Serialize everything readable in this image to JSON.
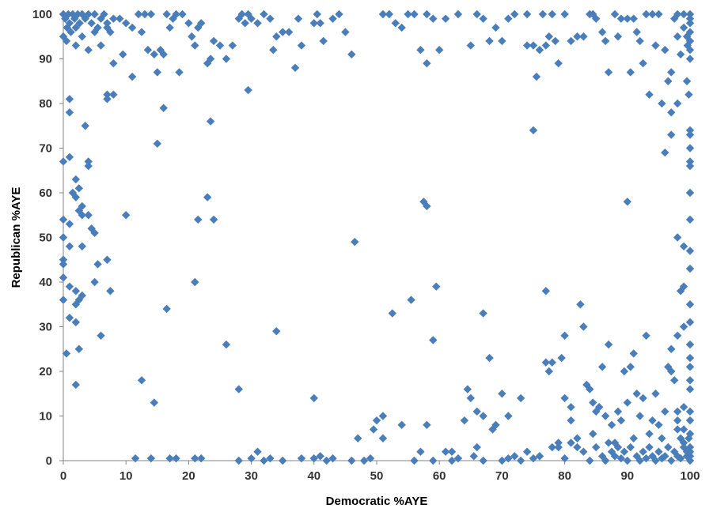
{
  "chart_data": {
    "type": "scatter",
    "title": "",
    "xlabel": "Democratic %AYE",
    "ylabel": "Republican %AYE",
    "xlim": [
      0,
      100
    ],
    "ylim": [
      0,
      100
    ],
    "x_ticks": [
      0,
      10,
      20,
      30,
      40,
      50,
      60,
      70,
      80,
      90,
      100
    ],
    "y_ticks": [
      0,
      10,
      20,
      30,
      40,
      50,
      60,
      70,
      80,
      90,
      100
    ],
    "grid": false,
    "legend": "none",
    "marker": "diamond",
    "marker_color": "#4a7ebb",
    "points": [
      [
        0,
        100
      ],
      [
        0.3,
        99
      ],
      [
        0.6,
        97
      ],
      [
        0.8,
        100
      ],
      [
        1,
        98
      ],
      [
        1.2,
        96
      ],
      [
        1.5,
        100
      ],
      [
        1.8,
        99
      ],
      [
        2,
        97
      ],
      [
        2.3,
        100
      ],
      [
        2.6,
        98
      ],
      [
        3,
        100
      ],
      [
        3.5,
        99
      ],
      [
        4,
        100
      ],
      [
        4.5,
        98
      ],
      [
        5,
        100
      ],
      [
        5.5,
        97
      ],
      [
        6,
        99
      ],
      [
        6.5,
        100
      ],
      [
        7,
        98
      ],
      [
        7.5,
        96
      ],
      [
        8,
        99
      ],
      [
        0,
        95
      ],
      [
        0.5,
        94
      ],
      [
        2,
        93
      ],
      [
        3,
        95
      ],
      [
        4,
        92
      ],
      [
        5,
        96
      ],
      [
        6,
        93
      ],
      [
        7,
        97
      ],
      [
        8,
        89
      ],
      [
        9,
        99
      ],
      [
        10,
        98
      ],
      [
        11,
        97
      ],
      [
        12,
        100
      ],
      [
        12.5,
        96
      ],
      [
        13,
        100
      ],
      [
        13.5,
        92
      ],
      [
        14,
        100
      ],
      [
        14.5,
        91
      ],
      [
        15,
        87
      ],
      [
        15.5,
        92
      ],
      [
        16,
        91
      ],
      [
        16.5,
        100
      ],
      [
        17,
        97
      ],
      [
        17.5,
        99
      ],
      [
        18,
        100
      ],
      [
        18.5,
        87
      ],
      [
        19,
        100
      ],
      [
        20,
        98
      ],
      [
        20.5,
        95
      ],
      [
        21,
        93
      ],
      [
        21.5,
        97
      ],
      [
        22,
        98
      ],
      [
        23,
        89
      ],
      [
        23.5,
        90
      ],
      [
        24,
        94
      ],
      [
        25,
        93
      ],
      [
        26,
        90
      ],
      [
        27,
        93
      ],
      [
        28,
        99
      ],
      [
        28.5,
        100
      ],
      [
        29,
        98
      ],
      [
        29.5,
        100
      ],
      [
        30,
        99
      ],
      [
        31,
        98
      ],
      [
        32,
        100
      ],
      [
        33,
        99
      ],
      [
        33.5,
        92
      ],
      [
        34,
        95
      ],
      [
        35,
        96
      ],
      [
        36,
        96
      ],
      [
        37,
        88
      ],
      [
        37.5,
        99
      ],
      [
        38,
        93
      ],
      [
        40,
        98
      ],
      [
        40.5,
        100
      ],
      [
        41,
        98
      ],
      [
        41.5,
        94
      ],
      [
        43,
        99
      ],
      [
        44,
        100
      ],
      [
        45,
        96
      ],
      [
        46,
        91
      ],
      [
        9.5,
        91
      ],
      [
        11,
        86
      ],
      [
        7,
        82
      ],
      [
        7,
        81
      ],
      [
        8,
        82
      ],
      [
        51,
        100
      ],
      [
        52,
        100
      ],
      [
        53,
        98
      ],
      [
        54,
        97
      ],
      [
        55,
        100
      ],
      [
        56,
        100
      ],
      [
        57,
        92
      ],
      [
        58,
        89
      ],
      [
        58,
        100
      ],
      [
        59,
        99
      ],
      [
        60,
        92
      ],
      [
        61,
        99
      ],
      [
        63,
        100
      ],
      [
        65,
        93
      ],
      [
        66,
        100
      ],
      [
        67,
        99
      ],
      [
        68,
        94
      ],
      [
        69,
        97
      ],
      [
        70,
        94
      ],
      [
        71,
        99
      ],
      [
        72,
        100
      ],
      [
        74,
        100
      ],
      [
        74,
        93
      ],
      [
        75,
        93
      ],
      [
        75.5,
        86
      ],
      [
        76,
        92
      ],
      [
        76.5,
        100
      ],
      [
        77,
        93
      ],
      [
        77.5,
        95
      ],
      [
        78,
        100
      ],
      [
        78.5,
        94
      ],
      [
        79,
        89
      ],
      [
        80,
        100
      ],
      [
        81,
        94
      ],
      [
        82,
        95
      ],
      [
        83,
        95
      ],
      [
        84,
        100
      ],
      [
        84.5,
        100
      ],
      [
        85,
        99
      ],
      [
        86,
        96
      ],
      [
        86.5,
        94
      ],
      [
        87,
        87
      ],
      [
        88,
        100
      ],
      [
        88.5,
        95
      ],
      [
        89,
        99
      ],
      [
        90,
        99
      ],
      [
        90.5,
        87
      ],
      [
        91,
        99
      ],
      [
        91.5,
        96
      ],
      [
        92,
        94
      ],
      [
        92.5,
        89
      ],
      [
        93,
        100
      ],
      [
        93.5,
        82
      ],
      [
        94,
        100
      ],
      [
        94.5,
        93
      ],
      [
        95,
        100
      ],
      [
        95.5,
        80
      ],
      [
        96,
        92
      ],
      [
        96.5,
        85
      ],
      [
        97,
        87
      ],
      [
        97.5,
        99
      ],
      [
        98,
        100
      ],
      [
        98.5,
        91
      ],
      [
        99,
        97
      ],
      [
        99.5,
        95
      ],
      [
        100,
        100
      ],
      [
        100,
        98
      ],
      [
        100,
        96
      ],
      [
        100,
        94
      ],
      [
        100,
        92
      ],
      [
        100,
        99
      ],
      [
        99,
        100
      ],
      [
        98,
        95
      ],
      [
        99.6,
        93
      ],
      [
        100,
        90
      ],
      [
        97,
        78
      ],
      [
        98,
        80
      ],
      [
        99.5,
        85
      ],
      [
        99.8,
        82
      ],
      [
        96,
        69
      ],
      [
        97,
        73
      ],
      [
        100,
        73
      ],
      [
        100,
        70
      ],
      [
        100,
        74
      ],
      [
        100,
        67
      ],
      [
        100,
        66
      ],
      [
        100,
        60
      ],
      [
        100,
        54
      ],
      [
        98,
        50
      ],
      [
        99,
        48
      ],
      [
        100,
        47
      ],
      [
        100,
        43
      ],
      [
        99,
        39
      ],
      [
        98.5,
        38
      ],
      [
        100,
        35
      ],
      [
        100,
        31
      ],
      [
        99,
        30
      ],
      [
        98,
        28
      ],
      [
        97,
        25
      ],
      [
        100,
        26
      ],
      [
        100,
        23
      ],
      [
        100,
        21
      ],
      [
        100,
        18
      ],
      [
        100,
        16
      ],
      [
        99,
        12
      ],
      [
        98,
        11
      ],
      [
        100,
        11
      ],
      [
        100,
        9
      ],
      [
        0,
        67
      ],
      [
        0,
        54
      ],
      [
        0,
        50
      ],
      [
        0,
        45
      ],
      [
        0,
        44
      ],
      [
        0,
        41
      ],
      [
        0,
        36
      ],
      [
        0.5,
        24
      ],
      [
        1,
        81
      ],
      [
        1,
        78
      ],
      [
        1,
        68
      ],
      [
        1,
        53
      ],
      [
        1,
        48
      ],
      [
        1,
        39
      ],
      [
        1,
        32
      ],
      [
        1.5,
        60
      ],
      [
        2,
        63
      ],
      [
        2,
        59
      ],
      [
        2,
        38
      ],
      [
        2,
        35
      ],
      [
        2,
        31
      ],
      [
        2,
        17
      ],
      [
        2.5,
        61
      ],
      [
        2.5,
        56
      ],
      [
        2.5,
        36
      ],
      [
        2.5,
        25
      ],
      [
        3,
        57
      ],
      [
        3,
        55
      ],
      [
        3,
        48
      ],
      [
        3,
        37
      ],
      [
        3.5,
        75
      ],
      [
        4,
        67
      ],
      [
        4,
        66
      ],
      [
        4,
        55
      ],
      [
        4.5,
        52
      ],
      [
        5,
        51
      ],
      [
        5,
        40
      ],
      [
        5.5,
        44
      ],
      [
        6,
        28
      ],
      [
        7,
        45
      ],
      [
        7.5,
        38
      ],
      [
        10,
        55
      ],
      [
        12.5,
        18
      ],
      [
        14.5,
        13
      ],
      [
        15,
        71
      ],
      [
        16,
        79
      ],
      [
        16.5,
        34
      ],
      [
        21,
        40
      ],
      [
        21.5,
        54
      ],
      [
        23,
        59
      ],
      [
        23.5,
        76
      ],
      [
        24,
        54
      ],
      [
        26,
        26
      ],
      [
        28,
        16
      ],
      [
        29.5,
        83
      ],
      [
        34,
        29
      ],
      [
        40,
        14
      ],
      [
        46.5,
        49
      ],
      [
        51,
        10
      ],
      [
        52.5,
        33
      ],
      [
        55.5,
        36
      ],
      [
        57.5,
        58
      ],
      [
        58,
        57
      ],
      [
        59,
        27
      ],
      [
        59.5,
        39
      ],
      [
        62,
        2
      ],
      [
        64,
        9
      ],
      [
        64.5,
        16
      ],
      [
        65,
        14
      ],
      [
        66,
        11
      ],
      [
        67,
        33
      ],
      [
        67,
        10
      ],
      [
        68,
        23
      ],
      [
        68.5,
        7
      ],
      [
        69,
        8
      ],
      [
        70,
        15
      ],
      [
        71,
        10
      ],
      [
        73,
        14
      ],
      [
        74,
        2
      ],
      [
        75,
        74
      ],
      [
        76,
        1
      ],
      [
        77,
        38
      ],
      [
        77,
        22
      ],
      [
        77.5,
        20
      ],
      [
        78,
        22
      ],
      [
        79,
        3
      ],
      [
        79.5,
        23
      ],
      [
        80,
        28
      ],
      [
        80,
        14
      ],
      [
        81,
        12
      ],
      [
        81,
        9
      ],
      [
        82,
        5
      ],
      [
        82.5,
        35
      ],
      [
        83,
        30
      ],
      [
        83.5,
        17
      ],
      [
        84,
        16
      ],
      [
        84.5,
        13
      ],
      [
        85,
        11
      ],
      [
        85.5,
        12
      ],
      [
        86,
        21
      ],
      [
        86.5,
        10
      ],
      [
        87,
        26
      ],
      [
        87.5,
        8
      ],
      [
        88,
        4
      ],
      [
        88.5,
        11
      ],
      [
        89,
        9
      ],
      [
        89.5,
        20
      ],
      [
        90,
        58
      ],
      [
        90,
        13
      ],
      [
        90.5,
        21
      ],
      [
        91,
        24
      ],
      [
        91.5,
        15
      ],
      [
        92,
        10
      ],
      [
        92.5,
        14
      ],
      [
        93,
        28
      ],
      [
        93.5,
        6
      ],
      [
        94,
        9
      ],
      [
        94.5,
        15
      ],
      [
        95,
        8
      ],
      [
        95.5,
        5
      ],
      [
        96,
        11
      ],
      [
        96.5,
        21
      ],
      [
        97,
        20
      ],
      [
        97.5,
        18
      ],
      [
        98,
        7
      ],
      [
        98.5,
        5
      ],
      [
        99,
        4
      ],
      [
        99.5,
        2
      ],
      [
        100,
        6
      ],
      [
        100,
        3
      ],
      [
        100,
        1
      ],
      [
        11.5,
        0.5
      ],
      [
        14,
        0.5
      ],
      [
        17,
        0.5
      ],
      [
        18,
        0.5
      ],
      [
        21,
        0.5
      ],
      [
        22,
        0.5
      ],
      [
        28,
        0
      ],
      [
        30,
        0.5
      ],
      [
        31,
        2
      ],
      [
        32,
        0
      ],
      [
        33,
        0.5
      ],
      [
        35,
        0
      ],
      [
        38,
        0.5
      ],
      [
        40,
        0.5
      ],
      [
        41,
        1
      ],
      [
        42,
        0
      ],
      [
        43,
        0.5
      ],
      [
        46,
        0
      ],
      [
        47,
        5
      ],
      [
        48,
        0
      ],
      [
        49,
        0.5
      ],
      [
        49.5,
        7
      ],
      [
        50,
        9
      ],
      [
        51,
        5
      ],
      [
        54,
        8
      ],
      [
        56,
        0
      ],
      [
        57,
        2
      ],
      [
        58,
        8
      ],
      [
        59,
        0
      ],
      [
        61,
        2
      ],
      [
        62,
        0
      ],
      [
        63,
        0.5
      ],
      [
        65.5,
        1
      ],
      [
        66,
        3
      ],
      [
        67,
        0
      ],
      [
        70,
        0
      ],
      [
        71,
        0.5
      ],
      [
        72,
        1
      ],
      [
        73,
        0
      ],
      [
        75,
        0.5
      ],
      [
        76,
        1
      ],
      [
        78,
        3
      ],
      [
        79,
        4
      ],
      [
        80,
        0.5
      ],
      [
        81,
        4
      ],
      [
        82,
        3
      ],
      [
        83,
        2
      ],
      [
        84,
        0
      ],
      [
        84.5,
        6
      ],
      [
        85,
        3
      ],
      [
        86,
        1
      ],
      [
        86.5,
        0
      ],
      [
        87,
        4
      ],
      [
        87.5,
        2
      ],
      [
        88,
        1
      ],
      [
        88.5,
        3
      ],
      [
        89,
        0.5
      ],
      [
        89.5,
        2
      ],
      [
        90,
        0
      ],
      [
        90.5,
        3
      ],
      [
        91,
        5
      ],
      [
        91.5,
        1
      ],
      [
        92,
        0
      ],
      [
        92.5,
        2
      ],
      [
        93,
        0.5
      ],
      [
        93.5,
        3
      ],
      [
        94,
        1
      ],
      [
        94.5,
        0
      ],
      [
        95,
        2
      ],
      [
        95.5,
        0.5
      ],
      [
        96,
        1
      ],
      [
        96.5,
        3
      ],
      [
        97,
        0
      ],
      [
        97.5,
        2
      ],
      [
        98,
        1
      ],
      [
        98.5,
        0.5
      ],
      [
        99,
        3
      ],
      [
        99.5,
        1
      ],
      [
        100,
        0
      ],
      [
        100,
        2
      ],
      [
        99.8,
        5
      ],
      [
        99,
        7
      ],
      [
        98,
        9
      ]
    ]
  }
}
